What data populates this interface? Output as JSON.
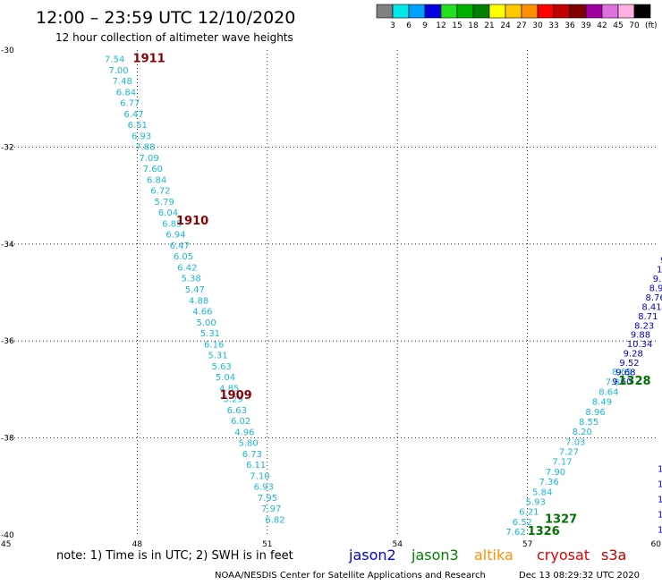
{
  "header": {
    "title": "12:00 – 23:59 UTC 12/10/2020",
    "subtitle": "12 hour collection of altimeter wave heights"
  },
  "color_scale": {
    "labels": [
      "3",
      "6",
      "9",
      "12",
      "15",
      "18",
      "21",
      "24",
      "27",
      "30",
      "33",
      "36",
      "39",
      "42",
      "45",
      "70"
    ],
    "unit": "(ft)",
    "colors": [
      "#808080",
      "#00e8e8",
      "#00a0ff",
      "#0000e0",
      "#20e020",
      "#00b000",
      "#008000",
      "#ffff00",
      "#ffc800",
      "#ff9000",
      "#ff0000",
      "#c00000",
      "#800000",
      "#a000a0",
      "#e070e0",
      "#ffb0e0",
      "#000000"
    ]
  },
  "axes": {
    "x_ticks": [
      45,
      48,
      51,
      54,
      57,
      60
    ],
    "y_ticks": [
      -30,
      -32,
      -34,
      -36,
      -38,
      -40
    ],
    "x_range": [
      45,
      60
    ],
    "y_range": [
      -40,
      -30
    ]
  },
  "note": "note:  1) Time is in UTC;  2) SWH is in feet",
  "satellites": [
    {
      "name": "jason2",
      "color": "#0000e0"
    },
    {
      "name": "jason3",
      "color": "#008000"
    },
    {
      "name": "altika",
      "color": "#ff9000"
    },
    {
      "name": "cryosat",
      "color": "#e00000"
    },
    {
      "name": "s3a",
      "color": "#c00000"
    }
  ],
  "footer": {
    "credit": "NOAA/NESDIS Center for Satellite Applications and Research",
    "timestamp": "Dec 13 08:29:32 UTC 2020"
  },
  "map": {
    "time_labels": [
      {
        "text": "1911",
        "lon": 47.9,
        "lat": -30.25,
        "color": "#8b0000"
      },
      {
        "text": "1910",
        "lon": 48.9,
        "lat": -33.6,
        "color": "#8b0000"
      },
      {
        "text": "1909",
        "lon": 49.9,
        "lat": -37.2,
        "color": "#8b0000"
      },
      {
        "text": "1328",
        "lon": 59.1,
        "lat": -36.9,
        "color": "#007000"
      },
      {
        "text": "1327",
        "lon": 57.4,
        "lat": -39.75,
        "color": "#007000"
      },
      {
        "text": "1326",
        "lon": 57.0,
        "lat": -40.0,
        "color": "#007000"
      }
    ],
    "tracks": [
      {
        "name": "track-1909-1911",
        "color": "#1ab8d8",
        "start": {
          "lon": 47.25,
          "lat": -30.25
        },
        "end": {
          "lon": 50.95,
          "lat": -39.75
        },
        "values": [
          "7.54",
          "7.00",
          "7.48",
          "6.84",
          "6.77",
          "6.47",
          "6.51",
          "6.93",
          "7.88",
          "7.09",
          "7.60",
          "6.84",
          "6.72",
          "5.79",
          "6.04",
          "6.85",
          "6.94",
          "6.47",
          "6.05",
          "6.42",
          "5.38",
          "5.47",
          "4.88",
          "4.66",
          "5.00",
          "5.31",
          "6.16",
          "5.31",
          "5.63",
          "5.04",
          "4.85",
          "5.29",
          "6.63",
          "6.02",
          "4.96",
          "5.80",
          "6.73",
          "6.11",
          "7.10",
          "6.93",
          "7.95",
          "7.97",
          "6.82"
        ]
      },
      {
        "name": "track-1326-1328",
        "color": "#1ab8d8",
        "start": {
          "lon": 56.5,
          "lat": -40.0
        },
        "end": {
          "lon": 58.95,
          "lat": -36.7
        },
        "values": [
          "7.62",
          "6.52",
          "6.21",
          "5.93",
          "5.84",
          "7.36",
          "7.90",
          "7.17",
          "7.27",
          "7.03",
          "8.20",
          "8.55",
          "8.96",
          "8.49",
          "8.64",
          "7.87",
          "8.65"
        ]
      },
      {
        "name": "track-jason2-1328",
        "color": "#0000c8",
        "start": {
          "lon": 58.95,
          "lat": -36.9
        },
        "end": {
          "lon": 60.15,
          "lat": -34.2
        },
        "values": [
          "9.60",
          "9.68",
          "9.52",
          "9.28",
          "10.34",
          "9.88",
          "8.23",
          "8.71",
          "8.41",
          "8.76",
          "8.96",
          "9.72",
          "10.2",
          "9.2",
          "9"
        ]
      },
      {
        "name": "track-edge-lower",
        "color": "#0000c8",
        "start": {
          "lon": 60.0,
          "lat": -38.7
        },
        "end": {
          "lon": 60.0,
          "lat": -39.95
        },
        "values": [
          "1",
          "11",
          "11",
          "10",
          "10"
        ]
      }
    ]
  }
}
